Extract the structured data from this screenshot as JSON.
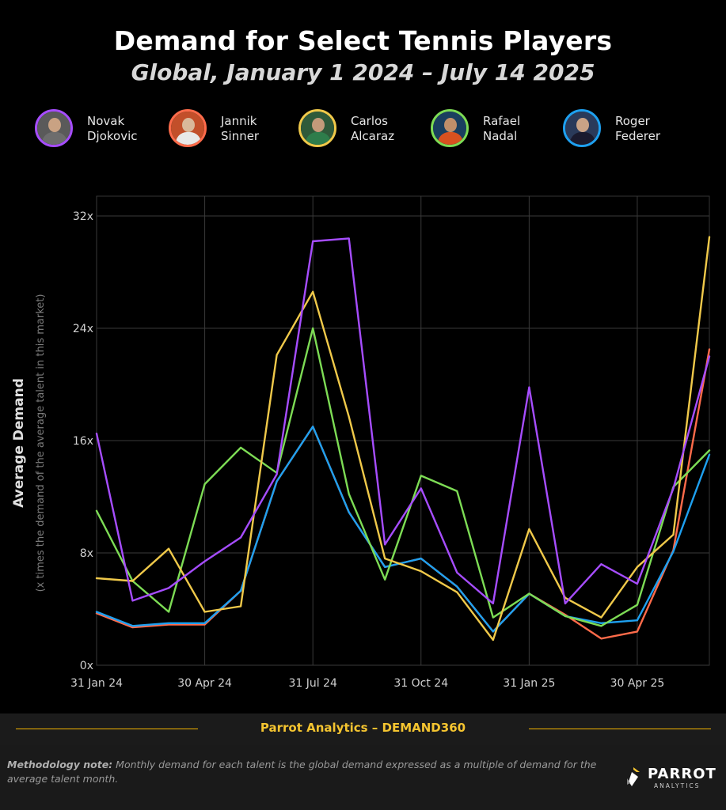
{
  "title": "Demand for Select Tennis Players",
  "subtitle": "Global, January 1 2024 – July 14 2025",
  "legend": [
    {
      "name": "Novak\nDjokovic",
      "color": "#a64dff",
      "avatar_icon": "novak-djokovic-photo"
    },
    {
      "name": "Jannik\nSinner",
      "color": "#ff6b4a",
      "avatar_icon": "jannik-sinner-photo"
    },
    {
      "name": "Carlos\nAlcaraz",
      "color": "#f0c94a",
      "avatar_icon": "carlos-alcaraz-photo"
    },
    {
      "name": "Rafael\nNadal",
      "color": "#7ddc55",
      "avatar_icon": "rafael-nadal-photo"
    },
    {
      "name": "Roger\nFederer",
      "color": "#1ea0f0",
      "avatar_icon": "roger-federer-photo"
    }
  ],
  "chart_data": {
    "type": "line",
    "ylabel": "Average Demand",
    "ylabel_sub": "(x times the demand of the average talent in this market)",
    "ylim": [
      0,
      32
    ],
    "yticks": [
      0,
      8,
      16,
      24,
      32
    ],
    "ytick_labels": [
      "0x",
      "8x",
      "16x",
      "24x",
      "32x"
    ],
    "x": [
      "2024-01-31",
      "2024-02-29",
      "2024-03-31",
      "2024-04-30",
      "2024-05-31",
      "2024-06-30",
      "2024-07-31",
      "2024-08-31",
      "2024-09-30",
      "2024-10-31",
      "2024-11-30",
      "2024-12-31",
      "2025-01-31",
      "2025-02-28",
      "2025-03-31",
      "2025-04-30",
      "2025-05-31",
      "2025-06-30"
    ],
    "xticks": [
      "31 Jan 24",
      "30 Apr 24",
      "31 Jul 24",
      "31 Oct 24",
      "31 Jan 25",
      "30 Apr 25"
    ],
    "xtick_index": [
      0,
      3,
      6,
      9,
      12,
      15
    ],
    "grid": true,
    "series": [
      {
        "name": "Novak Djokovic",
        "color": "#a64dff",
        "values": [
          16.5,
          4.6,
          5.5,
          7.4,
          9.1,
          13.6,
          30.2,
          30.4,
          8.6,
          12.6,
          6.6,
          4.4,
          19.8,
          4.4,
          7.2,
          5.8,
          12.6,
          22.0
        ]
      },
      {
        "name": "Jannik Sinner",
        "color": "#ff6b4a",
        "values": [
          3.7,
          2.7,
          2.9,
          2.9,
          5.3,
          13.1,
          17.0,
          10.9,
          7.0,
          7.6,
          5.6,
          2.4,
          5.1,
          3.6,
          1.9,
          2.4,
          8.2,
          22.5
        ]
      },
      {
        "name": "Carlos Alcaraz",
        "color": "#f0c94a",
        "values": [
          6.2,
          6.0,
          8.3,
          3.8,
          4.2,
          22.1,
          26.6,
          17.7,
          7.6,
          6.7,
          5.2,
          1.8,
          9.7,
          4.8,
          3.4,
          7.0,
          9.3,
          30.5
        ]
      },
      {
        "name": "Rafael Nadal",
        "color": "#7ddc55",
        "values": [
          11.0,
          6.0,
          3.8,
          12.9,
          15.5,
          13.7,
          24.0,
          12.2,
          6.1,
          13.5,
          12.4,
          3.4,
          5.1,
          3.5,
          2.8,
          4.3,
          12.7,
          15.3
        ]
      },
      {
        "name": "Roger Federer",
        "color": "#1ea0f0",
        "values": [
          3.8,
          2.8,
          3.0,
          3.0,
          5.3,
          13.1,
          17.0,
          10.9,
          7.0,
          7.6,
          5.6,
          2.4,
          5.1,
          3.5,
          3.0,
          3.2,
          8.1,
          15.0
        ]
      }
    ]
  },
  "footer": {
    "source": "Parrot Analytics – DEMAND360"
  },
  "note": {
    "label": "Methodology note:",
    "text": " Monthly demand for each talent is the global demand expressed as a multiple of demand for the average talent month."
  },
  "logo": {
    "word": "PARROT",
    "sub": "ANALYTICS"
  }
}
